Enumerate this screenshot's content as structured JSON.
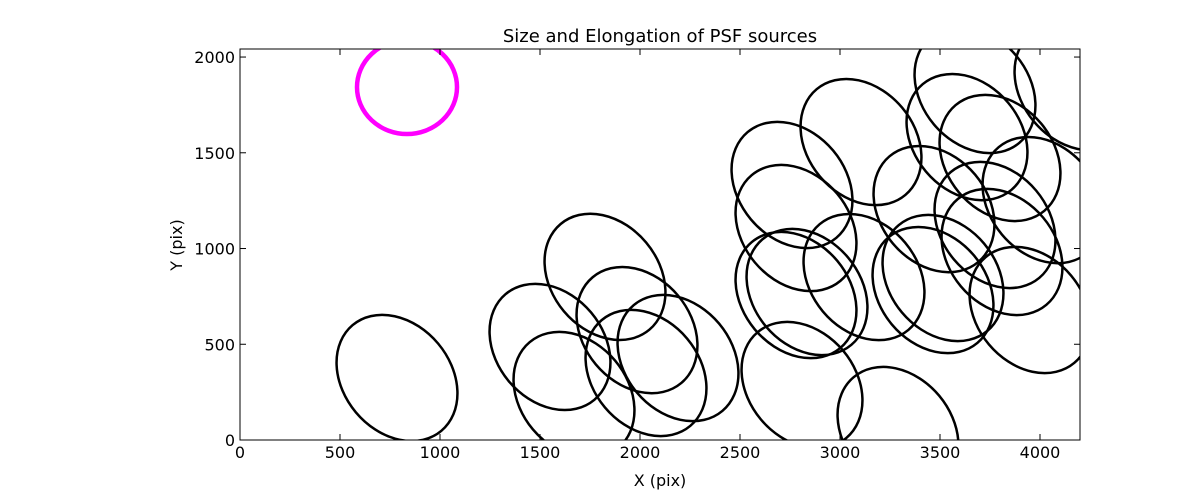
{
  "chart_data": {
    "type": "scatter",
    "title": "Size and Elongation of PSF sources",
    "xlabel": "X (pix)",
    "ylabel": "Y (pix)",
    "xlim": [
      0,
      4200
    ],
    "ylim": [
      0,
      2042
    ],
    "xticks": [
      0,
      500,
      1000,
      1500,
      2000,
      2500,
      3000,
      3500,
      4000
    ],
    "yticks": [
      0,
      500,
      1000,
      1500,
      2000
    ],
    "grid": false,
    "highlight": {
      "x": 835,
      "y": 1843,
      "a": 250,
      "b": 245,
      "angle": 0,
      "color": "#ff00ff"
    },
    "ellipse_color": "#000000",
    "ellipses": [
      {
        "x": 785,
        "y": 324
      },
      {
        "x": 1550,
        "y": 486
      },
      {
        "x": 1670,
        "y": 235
      },
      {
        "x": 1825,
        "y": 852
      },
      {
        "x": 1985,
        "y": 574
      },
      {
        "x": 2030,
        "y": 350
      },
      {
        "x": 2190,
        "y": 428
      },
      {
        "x": 2760,
        "y": 1332
      },
      {
        "x": 2780,
        "y": 1107
      },
      {
        "x": 2780,
        "y": 757
      },
      {
        "x": 2835,
        "y": 773
      },
      {
        "x": 2810,
        "y": 287
      },
      {
        "x": 3290,
        "y": 52
      },
      {
        "x": 3105,
        "y": 1556
      },
      {
        "x": 3120,
        "y": 851
      },
      {
        "x": 3470,
        "y": 1206
      },
      {
        "x": 3465,
        "y": 783
      },
      {
        "x": 3515,
        "y": 846
      },
      {
        "x": 3635,
        "y": 1582
      },
      {
        "x": 3675,
        "y": 1828
      },
      {
        "x": 3800,
        "y": 1473
      },
      {
        "x": 3775,
        "y": 1123
      },
      {
        "x": 3810,
        "y": 982
      },
      {
        "x": 4015,
        "y": 1253
      },
      {
        "x": 3950,
        "y": 679
      },
      {
        "x": 4175,
        "y": 1843
      }
    ],
    "ellipse_a": 345,
    "ellipse_b": 280,
    "ellipse_angle": -50
  }
}
